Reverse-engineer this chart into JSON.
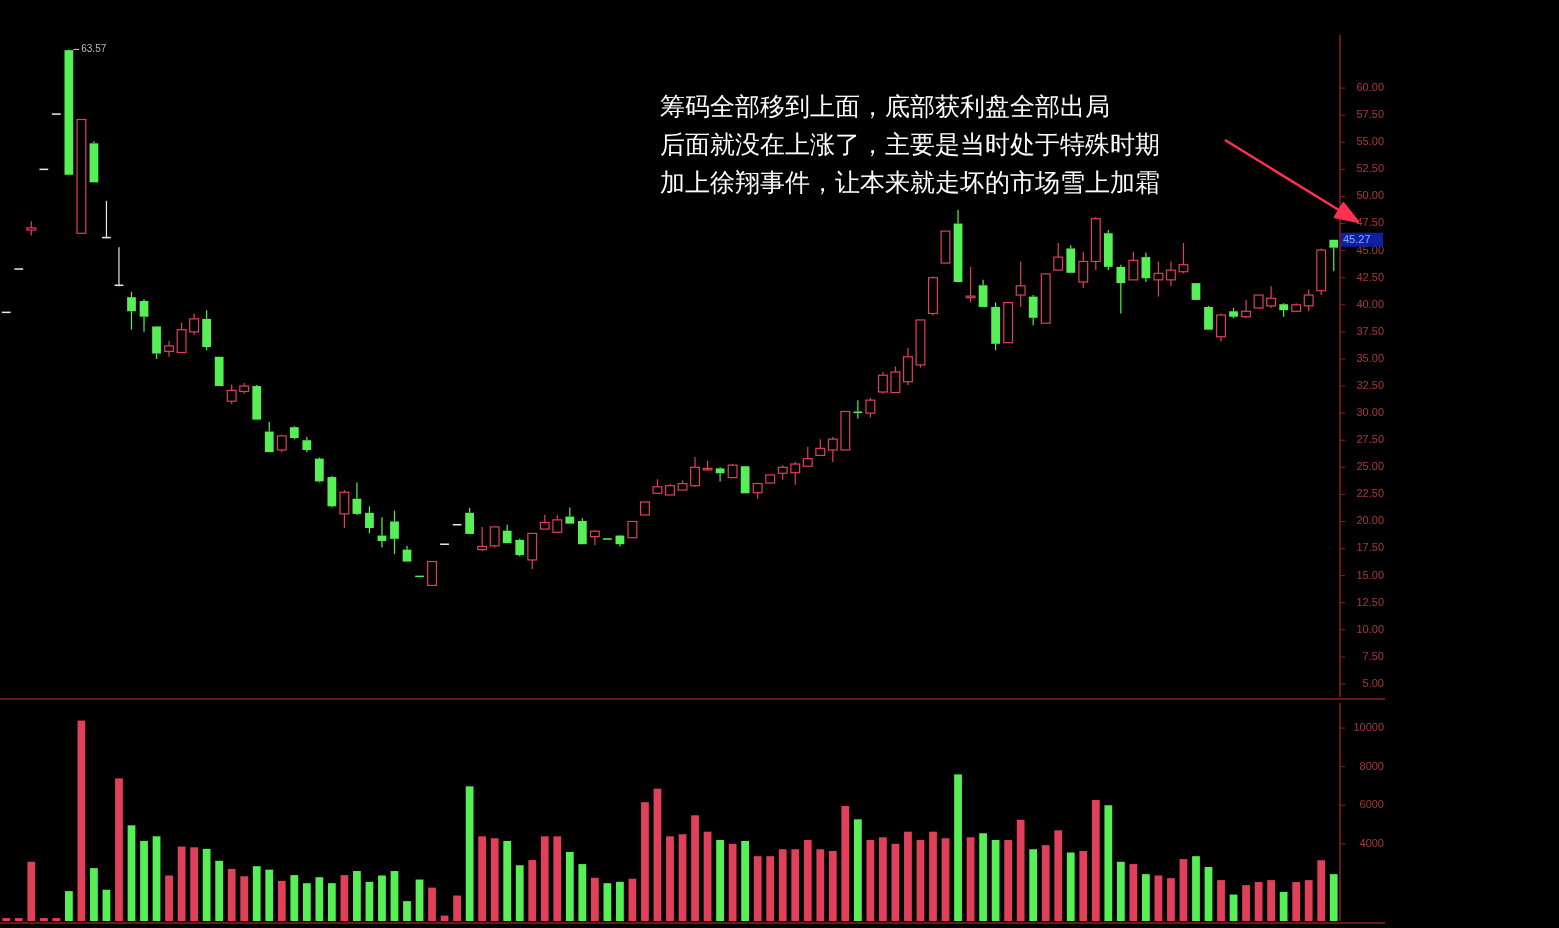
{
  "chart_data": [
    {
      "type": "candlestick",
      "categories": [
        null,
        null,
        null,
        null,
        null,
        null,
        null,
        null,
        null,
        null,
        null,
        null,
        null,
        null,
        null,
        null,
        null,
        null,
        null,
        null,
        null,
        null,
        null,
        null,
        null,
        null,
        null,
        null,
        null,
        null,
        null,
        null,
        null,
        null,
        null,
        null,
        null,
        null,
        null,
        null,
        null,
        null,
        null,
        null,
        null,
        null,
        null,
        null,
        null,
        null,
        null,
        null,
        null,
        null,
        null,
        null,
        null,
        null,
        null,
        null,
        null,
        null,
        null,
        null,
        null,
        null,
        null,
        null,
        null,
        null,
        null,
        null,
        null,
        null,
        null,
        null,
        null,
        null,
        null,
        null,
        null,
        null,
        null,
        null,
        null,
        null,
        null,
        null,
        null,
        null,
        null,
        null,
        null,
        null,
        null,
        null,
        null,
        null,
        null,
        null,
        null,
        null,
        null,
        null,
        null,
        null,
        null
      ],
      "colors": [
        "#e8e8e8",
        "#e8e8e8",
        "#e0405a",
        "#e8e8e8",
        "#e8e8e8",
        "#56f056",
        "#e0405a",
        "#56f056",
        "#e8e8e8",
        "#e8e8e8",
        "#56f056",
        "#56f056",
        "#56f056",
        "#e0405a",
        "#e0405a",
        "#e0405a",
        "#56f056",
        "#56f056",
        "#e0405a",
        "#e0405a",
        "#56f056",
        "#56f056",
        "#e0405a",
        "#56f056",
        "#56f056",
        "#56f056",
        "#56f056",
        "#e0405a",
        "#56f056",
        "#56f056",
        "#56f056",
        "#56f056",
        "#56f056",
        "#56f056",
        "#e0405a",
        "#e8e8e8",
        "#e8e8e8",
        "#56f056",
        "#e0405a",
        "#e0405a",
        "#56f056",
        "#56f056",
        "#e0405a",
        "#e0405a",
        "#e0405a",
        "#56f056",
        "#56f056",
        "#e0405a",
        "#56f056",
        "#56f056",
        "#e0405a",
        "#e0405a",
        "#e0405a",
        "#e0405a",
        "#e0405a",
        "#e0405a",
        "#e0405a",
        "#56f056",
        "#e0405a",
        "#56f056",
        "#e0405a",
        "#e0405a",
        "#e0405a",
        "#e0405a",
        "#e0405a",
        "#e0405a",
        "#e0405a",
        "#e0405a",
        "#56f056",
        "#e0405a",
        "#e0405a",
        "#e0405a",
        "#e0405a",
        "#e0405a",
        "#e0405a",
        "#e0405a",
        "#56f056",
        "#e0405a",
        "#56f056",
        "#56f056",
        "#e0405a",
        "#e0405a",
        "#56f056",
        "#e0405a",
        "#e0405a",
        "#56f056",
        "#e0405a",
        "#e0405a",
        "#56f056",
        "#56f056",
        "#e0405a",
        "#56f056",
        "#e0405a",
        "#e0405a",
        "#e0405a",
        "#56f056",
        "#56f056",
        "#e0405a",
        "#56f056",
        "#e0405a",
        "#e0405a",
        "#e0405a",
        "#56f056",
        "#e0405a",
        "#e0405a",
        "#e0405a",
        "#56f056"
      ],
      "ohlc": [
        [
          39.3,
          39.3,
          39.3,
          39.3
        ],
        [
          43.3,
          43.3,
          43.3,
          43.3
        ],
        [
          46.9,
          47.7,
          46.4,
          47.1
        ],
        [
          52.5,
          52.5,
          52.5,
          52.5
        ],
        [
          57.6,
          57.6,
          57.6,
          57.6
        ],
        [
          63.5,
          63.57,
          52.0,
          52.0
        ],
        [
          46.6,
          57.1,
          46.6,
          57.1
        ],
        [
          54.9,
          55.1,
          51.3,
          51.3
        ],
        [
          46.2,
          49.6,
          46.2,
          46.2
        ],
        [
          41.8,
          45.3,
          41.7,
          41.8
        ],
        [
          40.7,
          41.2,
          37.7,
          39.4
        ],
        [
          40.35,
          40.5,
          37.5,
          38.9
        ],
        [
          38.0,
          38.0,
          35.0,
          35.5
        ],
        [
          35.7,
          36.65,
          35.2,
          36.2
        ],
        [
          35.6,
          38.35,
          35.6,
          37.7
        ],
        [
          37.5,
          39.2,
          37.2,
          38.7
        ],
        [
          38.7,
          39.5,
          35.8,
          36.1
        ],
        [
          35.2,
          35.2,
          32.5,
          32.5
        ],
        [
          31.1,
          32.65,
          30.85,
          32.1
        ],
        [
          32.0,
          32.8,
          31.8,
          32.5
        ],
        [
          32.5,
          32.6,
          29.4,
          29.4
        ],
        [
          28.3,
          29.2,
          26.4,
          26.4
        ],
        [
          26.6,
          28.0,
          26.4,
          27.9
        ],
        [
          28.7,
          28.8,
          27.6,
          27.7
        ],
        [
          27.5,
          27.8,
          26.4,
          26.6
        ],
        [
          25.8,
          25.9,
          23.6,
          23.7
        ],
        [
          24.1,
          24.2,
          21.3,
          21.4
        ],
        [
          20.7,
          22.9,
          19.4,
          22.7
        ],
        [
          22.1,
          23.6,
          20.6,
          20.7
        ],
        [
          20.8,
          21.4,
          18.9,
          19.4
        ],
        [
          18.7,
          20.4,
          17.6,
          18.2
        ],
        [
          20.0,
          21.0,
          17.0,
          18.4
        ],
        [
          17.4,
          17.75,
          16.3,
          16.3
        ],
        [
          15.0,
          15.0,
          14.9,
          14.9
        ],
        [
          14.1,
          16.3,
          14.1,
          16.3
        ],
        [
          17.9,
          17.9,
          17.9,
          17.9
        ],
        [
          19.7,
          19.7,
          19.7,
          19.7
        ],
        [
          20.8,
          21.25,
          18.85,
          18.85
        ],
        [
          17.4,
          19.5,
          17.3,
          17.7
        ],
        [
          17.75,
          19.5,
          17.6,
          19.5
        ],
        [
          19.15,
          19.7,
          18.0,
          18.0
        ],
        [
          18.3,
          18.4,
          16.8,
          16.9
        ],
        [
          16.45,
          18.9,
          15.6,
          18.9
        ],
        [
          19.3,
          20.6,
          19.3,
          19.9
        ],
        [
          19.0,
          20.6,
          19.0,
          20.15
        ],
        [
          20.45,
          21.3,
          19.8,
          19.8
        ],
        [
          20.05,
          20.3,
          17.9,
          17.9
        ],
        [
          18.6,
          19.2,
          17.8,
          19.1
        ],
        [
          18.45,
          18.45,
          18.4,
          18.4
        ],
        [
          18.7,
          18.75,
          17.7,
          17.9
        ],
        [
          18.5,
          20.0,
          18.5,
          20.0
        ],
        [
          20.6,
          21.8,
          20.6,
          21.8
        ],
        [
          22.6,
          23.9,
          22.6,
          23.2
        ],
        [
          22.45,
          23.45,
          22.45,
          23.3
        ],
        [
          22.9,
          23.8,
          22.9,
          23.5
        ],
        [
          23.3,
          25.95,
          23.2,
          25.0
        ],
        [
          24.85,
          25.6,
          24.7,
          24.9
        ],
        [
          24.9,
          25.0,
          23.7,
          24.45
        ],
        [
          24.05,
          25.3,
          24.0,
          25.2
        ],
        [
          25.1,
          25.1,
          22.6,
          22.6
        ],
        [
          22.65,
          23.6,
          22.1,
          23.5
        ],
        [
          23.55,
          24.3,
          23.5,
          24.3
        ],
        [
          24.45,
          25.2,
          23.85,
          25.0
        ],
        [
          24.5,
          25.5,
          23.4,
          25.3
        ],
        [
          25.1,
          26.9,
          25.1,
          25.8
        ],
        [
          26.1,
          27.6,
          26.1,
          26.75
        ],
        [
          26.6,
          27.8,
          25.5,
          27.6
        ],
        [
          26.6,
          30.15,
          26.6,
          30.15
        ],
        [
          30.15,
          31.2,
          29.5,
          30.0
        ],
        [
          30.0,
          31.4,
          29.6,
          31.2
        ],
        [
          31.95,
          33.8,
          31.8,
          33.5
        ],
        [
          31.9,
          34.3,
          31.9,
          33.8
        ],
        [
          32.9,
          36.0,
          32.6,
          35.2
        ],
        [
          34.45,
          38.6,
          34.2,
          38.6
        ],
        [
          39.2,
          42.6,
          39.0,
          42.5
        ],
        [
          43.85,
          46.8,
          43.85,
          46.8
        ],
        [
          47.5,
          48.75,
          42.1,
          42.1
        ],
        [
          40.7,
          43.5,
          40.2,
          40.8
        ],
        [
          41.8,
          42.3,
          39.8,
          39.8
        ],
        [
          39.8,
          40.2,
          35.8,
          36.4
        ],
        [
          36.5,
          40.2,
          36.5,
          40.2
        ],
        [
          40.9,
          44.0,
          39.8,
          41.75
        ],
        [
          40.75,
          40.9,
          38.1,
          38.8
        ],
        [
          38.3,
          42.85,
          38.3,
          42.85
        ],
        [
          43.2,
          45.7,
          43.2,
          44.4
        ],
        [
          45.2,
          45.5,
          42.9,
          42.95
        ],
        [
          42.1,
          44.9,
          41.55,
          44.0
        ],
        [
          44.0,
          48.1,
          43.2,
          47.95
        ],
        [
          46.6,
          46.9,
          43.2,
          43.5
        ],
        [
          43.5,
          43.7,
          39.2,
          42.0
        ],
        [
          42.3,
          44.9,
          42.3,
          44.1
        ],
        [
          44.4,
          44.8,
          42.1,
          42.45
        ],
        [
          42.3,
          44.0,
          40.75,
          42.9
        ],
        [
          42.3,
          44.0,
          41.7,
          43.2
        ],
        [
          43.05,
          45.7,
          42.9,
          43.7
        ],
        [
          42.0,
          42.0,
          40.45,
          40.45
        ],
        [
          39.8,
          39.9,
          37.7,
          37.7
        ],
        [
          37.05,
          39.2,
          36.6,
          39.05
        ],
        [
          39.4,
          39.7,
          38.75,
          38.9
        ],
        [
          38.9,
          40.45,
          38.75,
          39.4
        ],
        [
          39.7,
          40.9,
          39.7,
          40.9
        ],
        [
          39.9,
          41.7,
          39.7,
          40.6
        ],
        [
          40.05,
          40.15,
          38.9,
          39.5
        ],
        [
          39.4,
          40.15,
          39.3,
          40.0
        ],
        [
          39.9,
          41.4,
          39.4,
          40.9
        ],
        [
          41.3,
          45.2,
          40.9,
          45.05
        ],
        [
          46.0,
          46.0,
          43.1,
          45.27
        ]
      ],
      "ylim": [
        3.8,
        64.9
      ],
      "yticks": [
        {
          "value": 5,
          "label": "5.00"
        },
        {
          "value": 7.5,
          "label": "7.50"
        },
        {
          "value": 10,
          "label": "10.00"
        },
        {
          "value": 12.5,
          "label": "12.50"
        },
        {
          "value": 15,
          "label": "15.00"
        },
        {
          "value": 17.5,
          "label": "17.50"
        },
        {
          "value": 20,
          "label": "20.00"
        },
        {
          "value": 22.5,
          "label": "22.50"
        },
        {
          "value": 25,
          "label": "25.00"
        },
        {
          "value": 27.5,
          "label": "27.50"
        },
        {
          "value": 30,
          "label": "30.00"
        },
        {
          "value": 32.5,
          "label": "32.50"
        },
        {
          "value": 35,
          "label": "35.00"
        },
        {
          "value": 37.5,
          "label": "37.50"
        },
        {
          "value": 40,
          "label": "40.00"
        },
        {
          "value": 42.5,
          "label": "42.50"
        },
        {
          "value": 45,
          "label": "45.00"
        },
        {
          "value": 47.5,
          "label": "47.50"
        },
        {
          "value": 50,
          "label": "50.00"
        },
        {
          "value": 52.5,
          "label": "52.50"
        },
        {
          "value": 55,
          "label": "55.00"
        },
        {
          "value": 57.5,
          "label": "57.50"
        },
        {
          "value": 60,
          "label": "60.00"
        }
      ],
      "annotations": [
        "63.57",
        "45.27",
        "筹码全部移到上面，底部获利盘全部出局",
        "后面就没在上涨了，主要是当时处于特殊时期",
        "加上徐翔事件，让本来就走坏的市场雪上加霜"
      ]
    },
    {
      "type": "bar",
      "categories": [
        null,
        null,
        null,
        null,
        null,
        null,
        null,
        null,
        null,
        null,
        null,
        null,
        null,
        null,
        null,
        null,
        null,
        null,
        null,
        null,
        null,
        null,
        null,
        null,
        null,
        null,
        null,
        null,
        null,
        null,
        null,
        null,
        null,
        null,
        null,
        null,
        null,
        null,
        null,
        null,
        null,
        null,
        null,
        null,
        null,
        null,
        null,
        null,
        null,
        null,
        null,
        null,
        null,
        null,
        null,
        null,
        null,
        null,
        null,
        null,
        null,
        null,
        null,
        null,
        null,
        null,
        null,
        null,
        null,
        null,
        null,
        null,
        null,
        null,
        null,
        null,
        null,
        null,
        null,
        null,
        null,
        null,
        null,
        null,
        null,
        null,
        null,
        null,
        null,
        null,
        null,
        null,
        null,
        null,
        null,
        null,
        null,
        null,
        null,
        null,
        null,
        null,
        null,
        null,
        null,
        null,
        null
      ],
      "values": [
        150,
        150,
        3070,
        150,
        150,
        1550,
        10390,
        2740,
        1620,
        7390,
        4960,
        4150,
        4390,
        2360,
        3860,
        3820,
        3740,
        3120,
        2700,
        2320,
        2840,
        2660,
        2080,
        2380,
        1960,
        2270,
        1960,
        2380,
        2590,
        2030,
        2360,
        2590,
        1030,
        2150,
        1730,
        280,
        1320,
        6980,
        4390,
        4290,
        4150,
        2890,
        3160,
        4390,
        4390,
        3580,
        2950,
        2240,
        1960,
        2030,
        2190,
        6160,
        6860,
        4390,
        4500,
        5480,
        4630,
        4200,
        4000,
        4150,
        3360,
        3360,
        3720,
        3720,
        4200,
        3720,
        3630,
        5960,
        5270,
        4200,
        4340,
        4000,
        4630,
        4200,
        4630,
        4290,
        7600,
        4340,
        4550,
        4200,
        4200,
        5250,
        3720,
        3930,
        4700,
        3550,
        3630,
        6270,
        6000,
        3070,
        2950,
        2430,
        2360,
        2220,
        3210,
        3360,
        2800,
        2120,
        1370,
        1860,
        2020,
        2120,
        1510,
        2020,
        2120,
        3150,
        2430
      ],
      "colors": [
        "#e0405a",
        "#e0405a",
        "#e0405a",
        "#e0405a",
        "#e0405a",
        "#56f056",
        "#e0405a",
        "#56f056",
        "#56f056",
        "#e0405a",
        "#56f056",
        "#56f056",
        "#56f056",
        "#e0405a",
        "#e0405a",
        "#e0405a",
        "#56f056",
        "#56f056",
        "#e0405a",
        "#e0405a",
        "#56f056",
        "#56f056",
        "#e0405a",
        "#56f056",
        "#56f056",
        "#56f056",
        "#56f056",
        "#e0405a",
        "#56f056",
        "#56f056",
        "#56f056",
        "#56f056",
        "#56f056",
        "#56f056",
        "#e0405a",
        "#e0405a",
        "#e0405a",
        "#56f056",
        "#e0405a",
        "#e0405a",
        "#56f056",
        "#56f056",
        "#e0405a",
        "#e0405a",
        "#e0405a",
        "#56f056",
        "#56f056",
        "#e0405a",
        "#56f056",
        "#56f056",
        "#e0405a",
        "#e0405a",
        "#e0405a",
        "#e0405a",
        "#e0405a",
        "#e0405a",
        "#e0405a",
        "#56f056",
        "#e0405a",
        "#56f056",
        "#e0405a",
        "#e0405a",
        "#e0405a",
        "#e0405a",
        "#e0405a",
        "#e0405a",
        "#e0405a",
        "#e0405a",
        "#56f056",
        "#e0405a",
        "#e0405a",
        "#e0405a",
        "#e0405a",
        "#e0405a",
        "#e0405a",
        "#e0405a",
        "#56f056",
        "#e0405a",
        "#56f056",
        "#56f056",
        "#e0405a",
        "#e0405a",
        "#56f056",
        "#e0405a",
        "#e0405a",
        "#56f056",
        "#e0405a",
        "#e0405a",
        "#56f056",
        "#56f056",
        "#e0405a",
        "#56f056",
        "#e0405a",
        "#e0405a",
        "#e0405a",
        "#56f056",
        "#56f056",
        "#e0405a",
        "#56f056",
        "#e0405a",
        "#e0405a",
        "#e0405a",
        "#56f056",
        "#e0405a",
        "#e0405a",
        "#e0405a",
        "#56f056"
      ],
      "ylim": [
        0,
        11300
      ],
      "yticks": [
        4000,
        6000,
        8000,
        10000
      ]
    }
  ]
}
